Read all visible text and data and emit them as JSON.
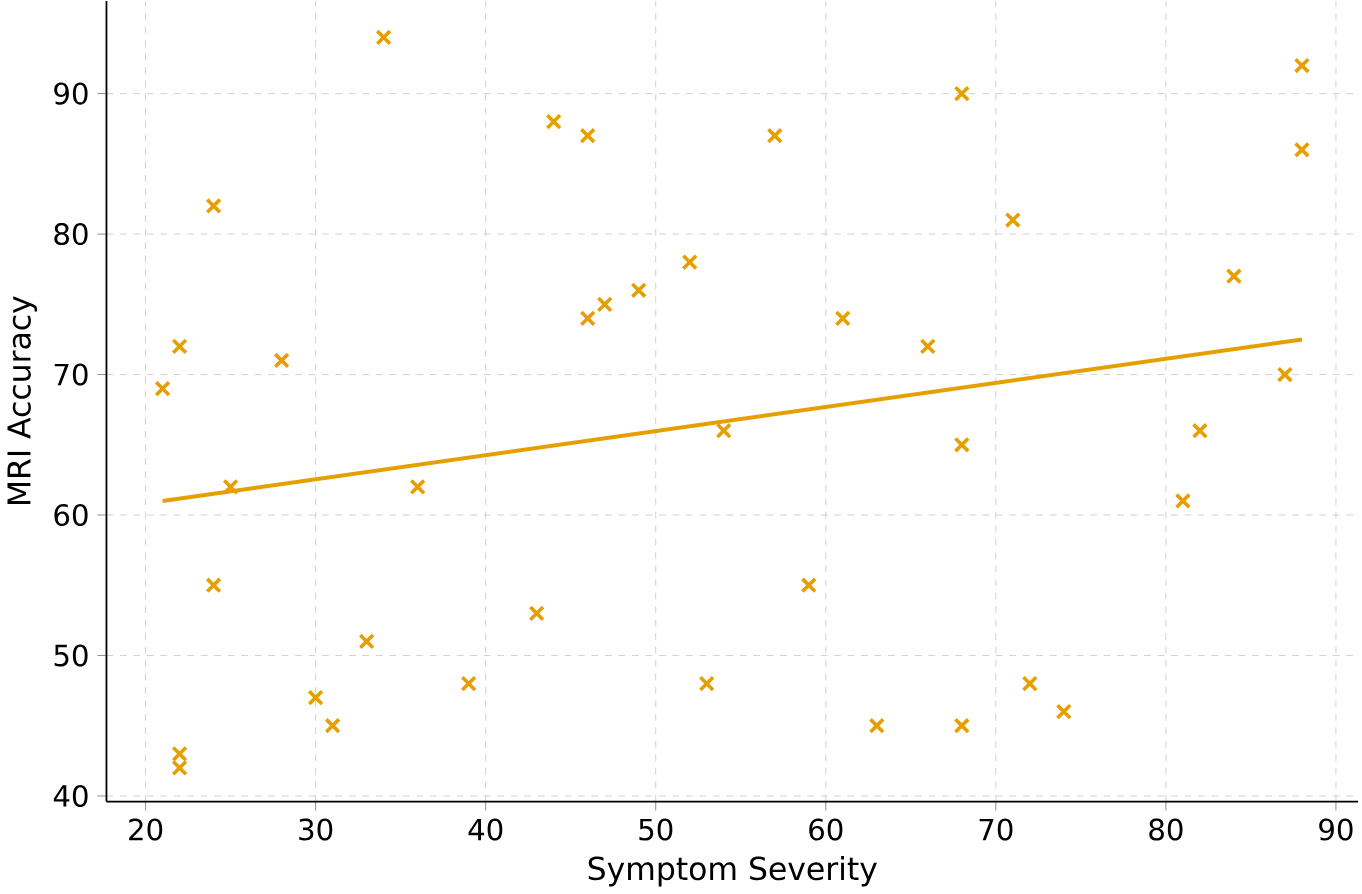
{
  "chart_data": {
    "type": "scatter",
    "xlabel": "Symptom Severity",
    "ylabel": "MRI Accuracy",
    "xlim": [
      17.7,
      91.3
    ],
    "ylim": [
      39.6,
      96.6
    ],
    "xticks": [
      20,
      30,
      40,
      50,
      60,
      70,
      80,
      90
    ],
    "yticks": [
      40,
      50,
      60,
      70,
      80,
      90
    ],
    "grid": true,
    "series": [
      {
        "marker": "cross",
        "color": "#e69f00",
        "x": [
          21,
          22,
          22,
          22,
          24,
          24,
          25,
          28,
          30,
          31,
          33,
          34,
          36,
          39,
          43,
          44,
          46,
          46,
          47,
          49,
          52,
          53,
          54,
          57,
          59,
          61,
          63,
          66,
          68,
          68,
          68,
          71,
          72,
          74,
          81,
          82,
          84,
          87,
          88,
          88
        ],
        "values": [
          69,
          72,
          43,
          42,
          82,
          55,
          62,
          71,
          47,
          45,
          51,
          94,
          62,
          48,
          53,
          88,
          87,
          74,
          75,
          76,
          78,
          48,
          66,
          87,
          55,
          74,
          45,
          72,
          90,
          65,
          45,
          81,
          48,
          46,
          61,
          66,
          77,
          70,
          92,
          86
        ]
      },
      {
        "type": "line",
        "marker": "none",
        "line_style": "solid",
        "color": "#e69f00",
        "x": [
          21,
          88
        ],
        "values": [
          61,
          72.5
        ]
      }
    ]
  }
}
